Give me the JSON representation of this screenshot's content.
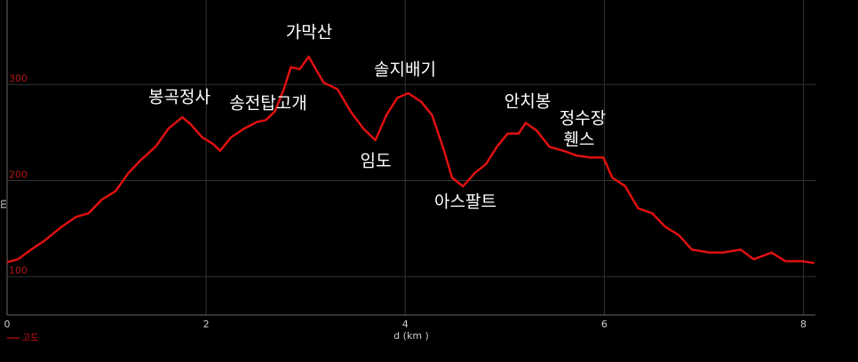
{
  "chart_data": {
    "type": "line",
    "x_label": "d (km )",
    "y_label": "m",
    "x": [
      0,
      0.11,
      0.24,
      0.37,
      0.55,
      0.69,
      0.82,
      0.95,
      1.09,
      1.22,
      1.35,
      1.49,
      1.62,
      1.76,
      1.84,
      1.96,
      2.07,
      2.14,
      2.25,
      2.38,
      2.51,
      2.6,
      2.69,
      2.78,
      2.85,
      2.94,
      3.03,
      3.09,
      3.18,
      3.32,
      3.45,
      3.58,
      3.7,
      3.81,
      3.92,
      4.03,
      4.16,
      4.27,
      4.39,
      4.47,
      4.58,
      4.7,
      4.81,
      4.92,
      5.03,
      5.14,
      5.21,
      5.32,
      5.45,
      5.59,
      5.72,
      5.86,
      5.99,
      6.08,
      6.21,
      6.34,
      6.48,
      6.61,
      6.75,
      6.88,
      7.06,
      7.19,
      7.37,
      7.5,
      7.68,
      7.82,
      7.99,
      8.11
    ],
    "series": [
      {
        "name": "고도",
        "color": "#e01010",
        "values": [
          115,
          118,
          128,
          137,
          152,
          162,
          166,
          180,
          189,
          208,
          222,
          235,
          254,
          266,
          259,
          245,
          238,
          231,
          245,
          254,
          261,
          263,
          272,
          295,
          318,
          316,
          329,
          318,
          302,
          295,
          272,
          254,
          242,
          268,
          286,
          291,
          282,
          268,
          231,
          203,
          194,
          208,
          217,
          235,
          249,
          249,
          260,
          252,
          235,
          231,
          226,
          224,
          224,
          203,
          194,
          171,
          166,
          152,
          143,
          128,
          125,
          125,
          128,
          118,
          125,
          116,
          116,
          114
        ]
      }
    ],
    "xlim": [
      0,
      8.12
    ],
    "ylim": [
      60,
      388
    ],
    "xticks": [
      0,
      2,
      4,
      6,
      8
    ],
    "yticks": [
      100,
      200,
      300
    ],
    "grid": true,
    "annotations": [
      "봉곡정사",
      "송전탑고개",
      "가막산",
      "임도",
      "솔지배기",
      "아스팔트",
      "안치봉",
      "정수장",
      "휀스"
    ]
  }
}
